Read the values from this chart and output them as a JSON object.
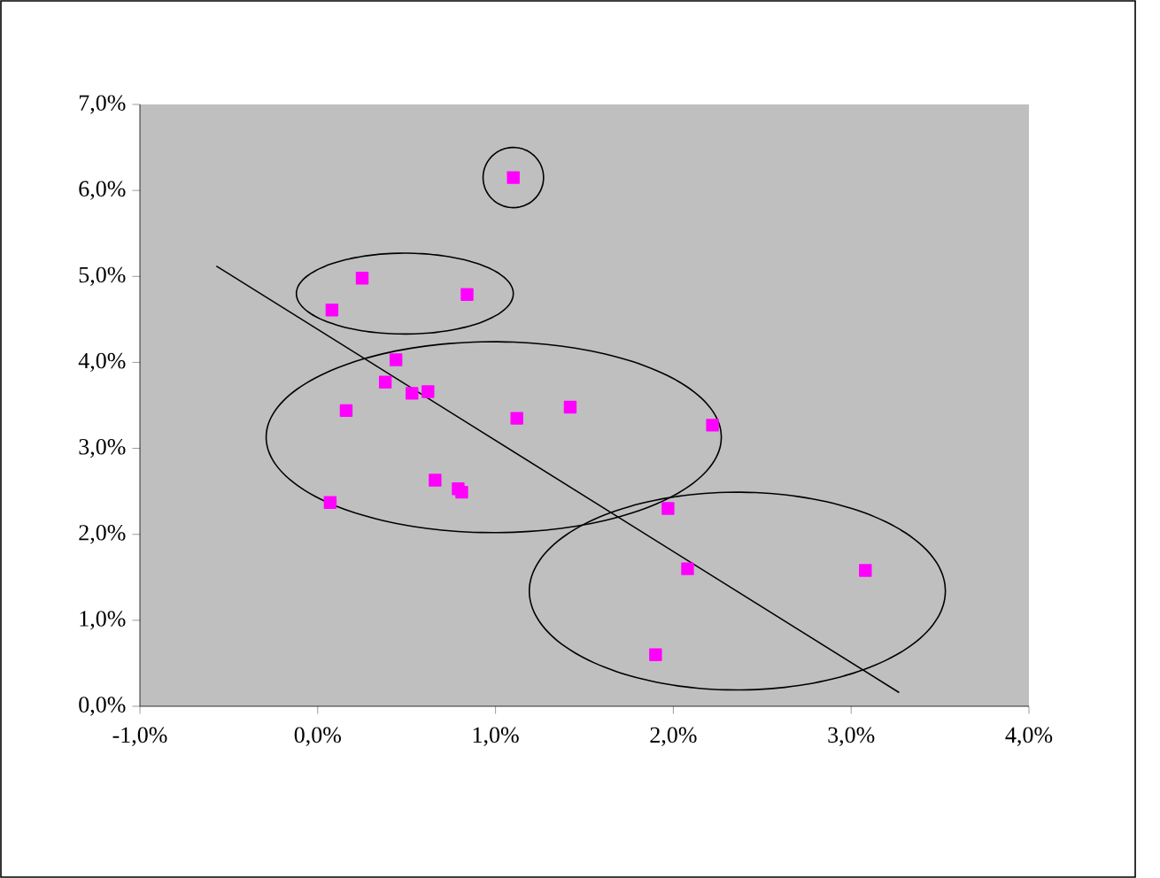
{
  "chart_data": {
    "type": "scatter",
    "xlim": [
      -1,
      4
    ],
    "ylim": [
      0,
      7
    ],
    "xticks": [
      {
        "value": -1,
        "label": "-1,0%"
      },
      {
        "value": 0,
        "label": "0,0%"
      },
      {
        "value": 1,
        "label": "1,0%"
      },
      {
        "value": 2,
        "label": "2,0%"
      },
      {
        "value": 3,
        "label": "3,0%"
      },
      {
        "value": 4,
        "label": "4,0%"
      }
    ],
    "yticks": [
      {
        "value": 0,
        "label": "0,0%"
      },
      {
        "value": 1,
        "label": "1,0%"
      },
      {
        "value": 2,
        "label": "2,0%"
      },
      {
        "value": 3,
        "label": "3,0%"
      },
      {
        "value": 4,
        "label": "4,0%"
      },
      {
        "value": 5,
        "label": "5,0%"
      },
      {
        "value": 6,
        "label": "6,0%"
      },
      {
        "value": 7,
        "label": "7,0%"
      }
    ],
    "marker": "square",
    "series": [
      {
        "color": "#ff00ff",
        "x": [
          0.08,
          0.25,
          0.84,
          1.1,
          0.44,
          0.38,
          0.16,
          0.53,
          0.62,
          1.12,
          1.42,
          2.22,
          0.66,
          0.79,
          0.81,
          0.07,
          1.97,
          2.08,
          3.08,
          1.9
        ],
        "values": [
          4.61,
          4.98,
          4.79,
          6.15,
          4.03,
          3.77,
          3.44,
          3.64,
          3.66,
          3.35,
          3.48,
          3.27,
          2.63,
          2.53,
          2.49,
          2.37,
          2.3,
          1.6,
          1.58,
          0.6
        ]
      },
      {
        "type": "line",
        "color": "#000000",
        "marker": "none",
        "x": [
          -0.57,
          3.27
        ],
        "values": [
          5.12,
          0.16
        ]
      }
    ]
  }
}
